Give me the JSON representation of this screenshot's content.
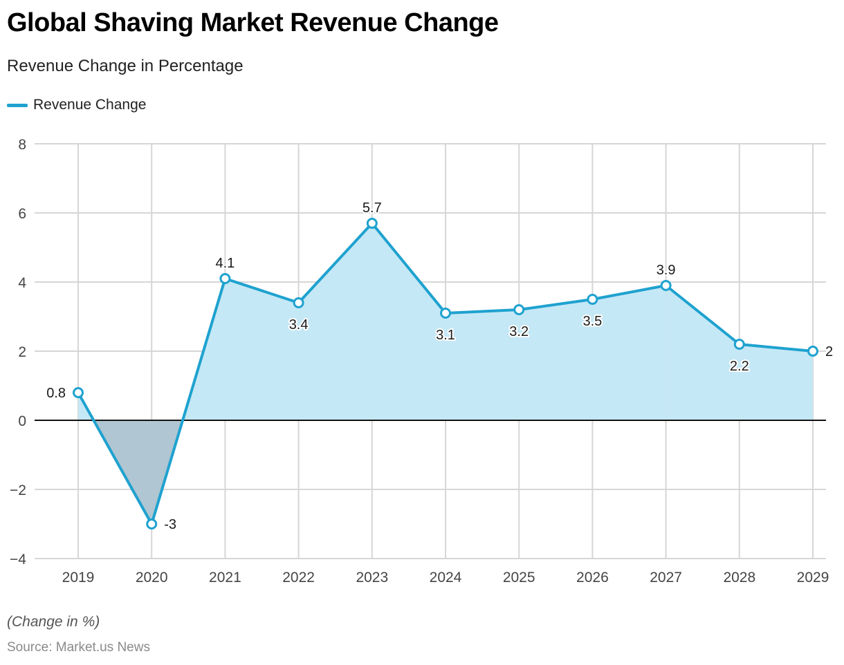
{
  "chart_data": {
    "type": "line",
    "title": "Global Shaving Market Revenue Change",
    "subtitle": "Revenue Change in Percentage",
    "xlabel": "",
    "ylabel": "",
    "categories": [
      "2019",
      "2020",
      "2021",
      "2022",
      "2023",
      "2024",
      "2025",
      "2026",
      "2027",
      "2028",
      "2029"
    ],
    "series": [
      {
        "name": "Revenue Change",
        "values": [
          0.8,
          -3,
          4.1,
          3.4,
          5.7,
          3.1,
          3.2,
          3.5,
          3.9,
          2.2,
          2
        ],
        "data_labels": [
          "0.8",
          "-3",
          "4.1",
          "3.4",
          "5.7",
          "3.1",
          "3.2",
          "3.5",
          "3.9",
          "2.2",
          "2"
        ],
        "label_position": [
          "left",
          "right",
          "above",
          "below",
          "above",
          "below",
          "below",
          "below",
          "above",
          "below",
          "right"
        ]
      }
    ],
    "ylim": [
      -4,
      8
    ],
    "yticks": [
      8,
      6,
      4,
      2,
      0,
      -2,
      -4
    ],
    "ytick_labels": [
      "8",
      "6",
      "4",
      "2",
      "0",
      "−2",
      "−4"
    ],
    "grid": true,
    "legend_placement": "top-left",
    "area_fill": true,
    "colors": {
      "line": "#1fa2cf",
      "positive_fill": "#c5e8f6",
      "negative_fill": "#b0c6d2",
      "grid": "#d6d6d6",
      "zero_line": "#111111",
      "marker_fill": "#ffffff"
    },
    "note": "(Change in %)",
    "source": "Source: Market.us News"
  },
  "legend": {
    "label": "Revenue Change"
  }
}
